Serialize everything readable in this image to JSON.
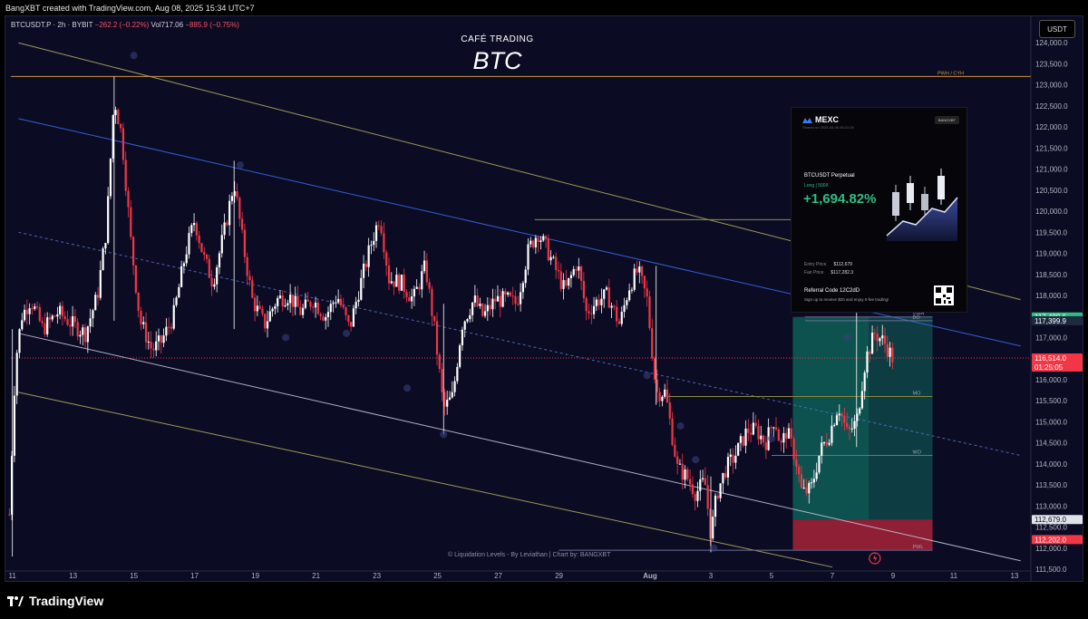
{
  "header": {
    "creator_line": "BangXBT created with TradingView.com, Aug 08, 2025 15:34 UTC+7",
    "symbol_line": "BTCUSDT.P · 2h · BYBIT",
    "change": "−262.2 (−0.22%)",
    "volume_label": "Vol",
    "volume": "717.06",
    "vol_change": "−885.9 (−0.75%)",
    "currency_button": "USDT"
  },
  "title": {
    "small": "CAFÉ TRADING",
    "big": "BTC"
  },
  "credit": "© Liquidation Levels - By Leviathan | Chart by: BANGXBT",
  "footer": {
    "brand": "TradingView"
  },
  "colors": {
    "background": "#0b0c24",
    "up": "#ffffff",
    "down": "#f23645",
    "channel_upper": "#3a6cf0",
    "channel_outer": "#b8b060",
    "channel_inner": "#c8cbe0",
    "long_zone": "#0f7a68",
    "stop_zone": "#c8283c"
  },
  "mexc_card": {
    "brand": "MEXC",
    "shared": "Shared on 2025-08-08 08:21:26",
    "badge": "BANGXBT",
    "pair": "BTCUSDT Perpetual",
    "side": "Long | 500X",
    "pnl": "+1,694.82%",
    "entry_label": "Entry Price",
    "entry_value": "$112,679",
    "fair_label": "Fair Price",
    "fair_value": "$117,282.3",
    "referral_label": "Referral Code",
    "referral_code": "12C2dD",
    "referral_sub": "Sign up to receive $20 and enjoy 0-fee trading!"
  },
  "chart_data": {
    "type": "candlestick",
    "title": "BTC",
    "xlabel": "",
    "ylabel": "",
    "ylim": [
      111500,
      124500
    ],
    "y_ticks": [
      111500,
      112000,
      112500,
      113000,
      113500,
      114000,
      114500,
      115000,
      115500,
      116000,
      116500,
      117000,
      117500,
      118000,
      118500,
      119000,
      119500,
      120000,
      120500,
      121000,
      121500,
      122000,
      122500,
      123000,
      123500,
      124000
    ],
    "x_ticks": [
      {
        "label": "11",
        "day": 11
      },
      {
        "label": "13",
        "day": 13
      },
      {
        "label": "15",
        "day": 15
      },
      {
        "label": "17",
        "day": 17
      },
      {
        "label": "19",
        "day": 19
      },
      {
        "label": "21",
        "day": 21
      },
      {
        "label": "23",
        "day": 23
      },
      {
        "label": "25",
        "day": 25
      },
      {
        "label": "27",
        "day": 27
      },
      {
        "label": "29",
        "day": 29
      },
      {
        "label": "Aug",
        "day": 32
      },
      {
        "label": "3",
        "day": 34
      },
      {
        "label": "5",
        "day": 36
      },
      {
        "label": "7",
        "day": 38
      },
      {
        "label": "9",
        "day": 40
      },
      {
        "label": "11",
        "day": 42
      },
      {
        "label": "13",
        "day": 44
      }
    ],
    "x_range_days": [
      10.95,
      44.45
    ],
    "close_path": [
      [
        10.9,
        112800
      ],
      [
        11.1,
        116400
      ],
      [
        11.3,
        117500
      ],
      [
        11.6,
        117900
      ],
      [
        12.0,
        117200
      ],
      [
        12.5,
        117600
      ],
      [
        13.0,
        117300
      ],
      [
        13.4,
        117100
      ],
      [
        13.8,
        118000
      ],
      [
        14.1,
        119600
      ],
      [
        14.35,
        122700
      ],
      [
        14.6,
        121800
      ],
      [
        14.9,
        119300
      ],
      [
        15.2,
        117400
      ],
      [
        15.6,
        116700
      ],
      [
        15.9,
        116900
      ],
      [
        16.3,
        117500
      ],
      [
        16.7,
        119000
      ],
      [
        17.0,
        119800
      ],
      [
        17.3,
        118900
      ],
      [
        17.6,
        118300
      ],
      [
        18.0,
        119600
      ],
      [
        18.3,
        120700
      ],
      [
        18.6,
        119200
      ],
      [
        18.9,
        117900
      ],
      [
        19.3,
        117300
      ],
      [
        19.7,
        117900
      ],
      [
        20.1,
        118000
      ],
      [
        20.5,
        117600
      ],
      [
        20.9,
        117900
      ],
      [
        21.3,
        117500
      ],
      [
        21.7,
        118000
      ],
      [
        22.1,
        117200
      ],
      [
        22.4,
        118100
      ],
      [
        22.8,
        119200
      ],
      [
        23.1,
        119900
      ],
      [
        23.4,
        118400
      ],
      [
        23.8,
        118300
      ],
      [
        24.2,
        117900
      ],
      [
        24.6,
        118700
      ],
      [
        24.9,
        117200
      ],
      [
        25.2,
        115300
      ],
      [
        25.5,
        115600
      ],
      [
        25.8,
        117300
      ],
      [
        26.2,
        117900
      ],
      [
        26.5,
        117500
      ],
      [
        26.9,
        117900
      ],
      [
        27.3,
        117900
      ],
      [
        27.6,
        117800
      ],
      [
        28.0,
        119100
      ],
      [
        28.3,
        119500
      ],
      [
        28.6,
        119100
      ],
      [
        28.9,
        118600
      ],
      [
        29.2,
        118100
      ],
      [
        29.6,
        118800
      ],
      [
        29.9,
        117600
      ],
      [
        30.3,
        117900
      ],
      [
        30.6,
        118000
      ],
      [
        31.0,
        117300
      ],
      [
        31.3,
        118200
      ],
      [
        31.6,
        118600
      ],
      [
        31.9,
        117900
      ],
      [
        32.2,
        115700
      ],
      [
        32.5,
        115700
      ],
      [
        32.9,
        113900
      ],
      [
        33.2,
        113700
      ],
      [
        33.5,
        113300
      ],
      [
        33.8,
        113600
      ],
      [
        34.0,
        112300
      ],
      [
        34.2,
        113300
      ],
      [
        34.5,
        113900
      ],
      [
        34.8,
        114200
      ],
      [
        35.2,
        114800
      ],
      [
        35.5,
        114800
      ],
      [
        35.8,
        114500
      ],
      [
        36.1,
        115100
      ],
      [
        36.3,
        114400
      ],
      [
        36.5,
        114800
      ],
      [
        36.8,
        114100
      ],
      [
        37.0,
        113300
      ],
      [
        37.3,
        113400
      ],
      [
        37.6,
        114300
      ],
      [
        37.9,
        114700
      ],
      [
        38.2,
        115400
      ],
      [
        38.5,
        114700
      ],
      [
        38.8,
        115000
      ],
      [
        39.1,
        116500
      ],
      [
        39.4,
        117100
      ],
      [
        39.7,
        116900
      ],
      [
        40.0,
        116500
      ]
    ],
    "spikes": [
      [
        11.0,
        111800,
        117200
      ],
      [
        14.35,
        117400,
        123200
      ],
      [
        18.3,
        117200,
        121200
      ],
      [
        25.2,
        114700,
        117800
      ],
      [
        32.2,
        115400,
        118700
      ],
      [
        34.0,
        111900,
        113700
      ],
      [
        38.8,
        114400,
        117700
      ]
    ],
    "levels": [
      {
        "name": "PWH",
        "label": "PWH / CYH",
        "y": 123200,
        "from_day": 10.95
      },
      {
        "name": "VWAP",
        "label": "VWH",
        "y": 117489.6,
        "from_day": 37.1
      },
      {
        "name": "open",
        "label": "DO",
        "y": 117399.9,
        "from_day": 37.1
      },
      {
        "name": "last",
        "label": "",
        "y": 116514.0,
        "from_day": 10.95
      },
      {
        "name": "MO",
        "label": "MO",
        "y": 115600,
        "from_day": 32.6
      },
      {
        "name": "WO",
        "label": "WO",
        "y": 114200,
        "from_day": 36.0
      },
      {
        "name": "PWL",
        "label": "PWL",
        "y": 111950,
        "from_day": 29.0
      },
      {
        "name": "swing",
        "label": "",
        "y": 119800,
        "from_day": 28.2
      }
    ],
    "channels": [
      {
        "name": "outer-upper",
        "color": "#b8b060",
        "p1": [
          11.2,
          124000
        ],
        "p2": [
          44.2,
          117900
        ]
      },
      {
        "name": "blue-upper",
        "color": "#3a6cf0",
        "p1": [
          11.2,
          122200
        ],
        "p2": [
          44.2,
          116800
        ]
      },
      {
        "name": "dash-mid",
        "color": "#5a6fd0",
        "dashed": true,
        "p1": [
          11.2,
          119500
        ],
        "p2": [
          44.2,
          114200
        ]
      },
      {
        "name": "inner-lower",
        "color": "#c8cbe0",
        "p1": [
          11.2,
          117100
        ],
        "p2": [
          44.2,
          111700
        ]
      },
      {
        "name": "outer-lower",
        "color": "#b8b060",
        "p1": [
          11.2,
          115700
        ],
        "p2": [
          38.0,
          111550
        ]
      }
    ],
    "position": {
      "entry": 112679.0,
      "target": 117489.6,
      "stop": 112202.0,
      "from_day": 36.7,
      "to_day": 41.3,
      "split_day": 39.2
    },
    "price_labels": [
      {
        "value": 117489.6,
        "text": "117,489.6",
        "bg": "#2ebd85",
        "fg": "#ffffff"
      },
      {
        "value": 117399.9,
        "text": "117,399.9",
        "bg": "#1f2a40",
        "fg": "#ffffff"
      },
      {
        "value": 116514.0,
        "text": "116,514.0",
        "bg": "#f23645",
        "fg": "#ffffff",
        "sub": "01:25:05"
      },
      {
        "value": 112679.0,
        "text": "112,679.0",
        "bg": "#e0e3eb",
        "fg": "#111111"
      },
      {
        "value": 112202.0,
        "text": "112,202.0",
        "bg": "#f23645",
        "fg": "#ffffff"
      }
    ]
  }
}
